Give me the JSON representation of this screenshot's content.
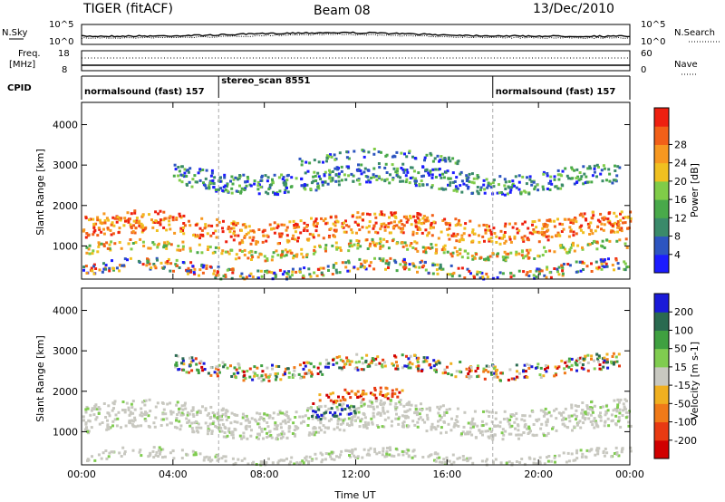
{
  "header": {
    "radar": "TIGER (fitACF)",
    "beam": "Beam 08",
    "date": "13/Dec/2010"
  },
  "strips": {
    "nsky_label": "N.Sky",
    "nsearch_label": "N.Search",
    "nsky_top": "10^5",
    "nsky_bottom": "10^0",
    "nsearch_top": "10^5",
    "nsearch_bottom": "10^0",
    "freq_label_1": "Freq.",
    "freq_label_2": "[MHz]",
    "freq_top": "18",
    "freq_bottom": "8",
    "nave_label": "Nave",
    "nave_top": "60",
    "nave_bottom": "0",
    "cpid_label": "CPID"
  },
  "cpid_segments": [
    {
      "label": "normalsound (fast) 157",
      "start_h": 0,
      "end_h": 6
    },
    {
      "label": "stereo_scan 8551",
      "start_h": 6,
      "end_h": 18
    },
    {
      "label": "normalsound (fast) 157",
      "start_h": 18,
      "end_h": 24
    }
  ],
  "chart_data": [
    {
      "type": "heatmap",
      "quantity": "Power",
      "ylabel": "Slant Range [km]",
      "xlabel": "Time UT",
      "x_ticks": [
        "00:00",
        "04:00",
        "08:00",
        "12:00",
        "16:00",
        "20:00",
        "00:00"
      ],
      "xlim_hours": [
        0,
        24
      ],
      "ylim_km": [
        180,
        4550
      ],
      "y_ticks": [
        1000,
        2000,
        3000,
        4000
      ],
      "colorbar": {
        "label": "Power [dB]",
        "ticks": [
          4,
          8,
          12,
          16,
          20,
          24,
          28
        ],
        "range": [
          0,
          32
        ],
        "colors": [
          "#1c1cff",
          "#2d55c0",
          "#3a8a6a",
          "#49a94a",
          "#80cc48",
          "#f0c020",
          "#f79820",
          "#f26018",
          "#ee2010"
        ]
      },
      "mode_change_hours": [
        6,
        18
      ],
      "echo_bands": [
        {
          "center_km": 1450,
          "width_km": 550,
          "start_h": 0,
          "end_h": 24,
          "level": "high"
        },
        {
          "center_km": 900,
          "width_km": 250,
          "start_h": 0,
          "end_h": 24,
          "level": "mid"
        },
        {
          "center_km": 2650,
          "width_km": 500,
          "start_h": 4,
          "end_h": 23.5,
          "level": "low"
        },
        {
          "center_km": 3150,
          "width_km": 200,
          "start_h": 9.5,
          "end_h": 16.5,
          "level": "low"
        },
        {
          "center_km": 400,
          "width_km": 300,
          "start_h": 0,
          "end_h": 24,
          "level": "mixed"
        }
      ]
    },
    {
      "type": "heatmap",
      "quantity": "Velocity",
      "ylabel": "Slant Range [km]",
      "xlabel": "Time UT",
      "x_ticks": [
        "00:00",
        "04:00",
        "08:00",
        "12:00",
        "16:00",
        "20:00",
        "00:00"
      ],
      "xlim_hours": [
        0,
        24
      ],
      "ylim_km": [
        180,
        4550
      ],
      "y_ticks": [
        1000,
        2000,
        3000,
        4000
      ],
      "colorbar": {
        "label": "Velocity [m s-1]",
        "ticks": [
          "200",
          "100",
          "50",
          "15",
          "-15",
          "-50",
          "-100",
          "-200"
        ],
        "range": [
          -250,
          250
        ],
        "colors": [
          "#1a1ad8",
          "#2a6a50",
          "#3fa040",
          "#80cc50",
          "#c8c8c0",
          "#f0b020",
          "#f07a18",
          "#e83a12",
          "#d00000"
        ]
      },
      "mode_change_hours": [
        6,
        18
      ],
      "echo_bands": [
        {
          "center_km": 1300,
          "width_km": 700,
          "start_h": 0,
          "end_h": 24,
          "level": "ground"
        },
        {
          "center_km": 350,
          "width_km": 250,
          "start_h": 0,
          "end_h": 24,
          "level": "ground"
        },
        {
          "center_km": 2600,
          "width_km": 400,
          "start_h": 4,
          "end_h": 23.5,
          "level": "mixed"
        },
        {
          "center_km": 1800,
          "width_km": 300,
          "start_h": 10,
          "end_h": 14,
          "level": "negative"
        },
        {
          "center_km": 1450,
          "width_km": 300,
          "start_h": 10,
          "end_h": 12,
          "level": "positive"
        }
      ]
    }
  ]
}
